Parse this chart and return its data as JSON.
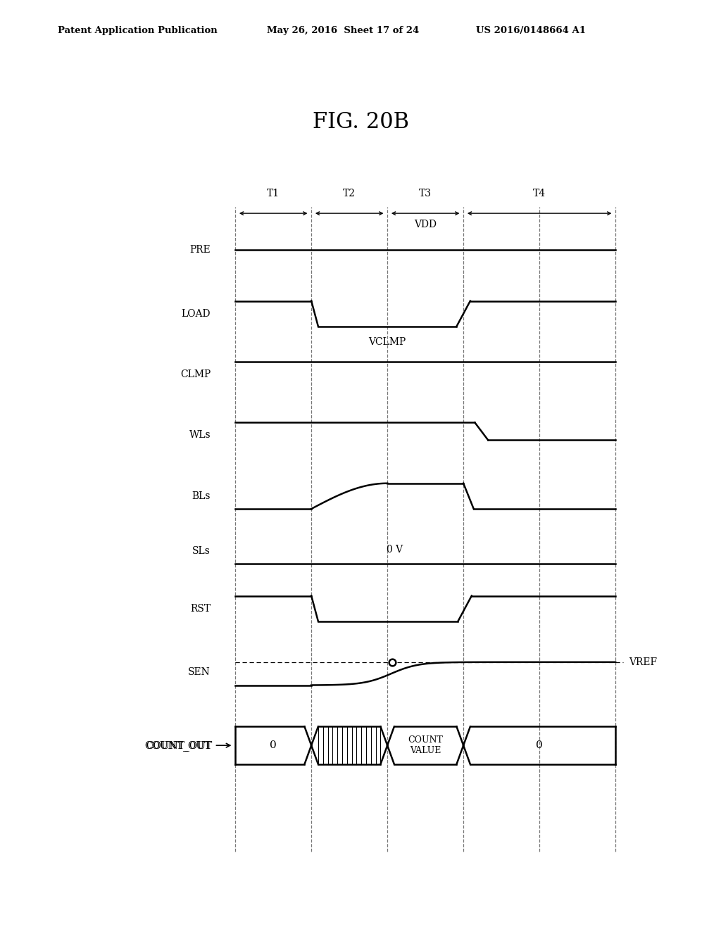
{
  "title": "FIG. 20B",
  "header_left": "Patent Application Publication",
  "header_center": "May 26, 2016  Sheet 17 of 24",
  "header_right": "US 2016/0148664 A1",
  "signals": [
    "PRE",
    "LOAD",
    "CLMP",
    "WLs",
    "BLs",
    "SLs",
    "RST",
    "SEN",
    "COUNT_OUT"
  ],
  "time_labels": [
    "T1",
    "T2",
    "T3",
    "T4"
  ],
  "vdd_label": "VDD",
  "vclmp_label": "VCLMP",
  "ov_label": "0 V",
  "vref_label": "VREF",
  "count_labels": [
    "0",
    "COUNT\nVALUE",
    "0"
  ],
  "line_color": "#000000",
  "dashed_color": "#777777",
  "bg_color": "#ffffff"
}
